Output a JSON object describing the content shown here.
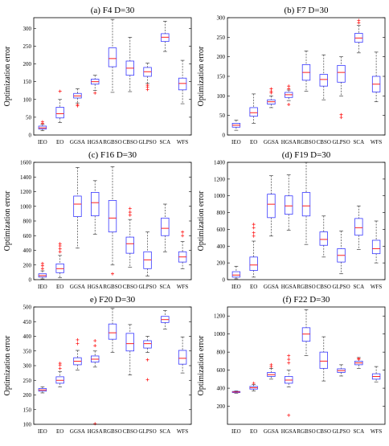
{
  "colors": {
    "box": "#3a3aff",
    "median": "#ff2020",
    "whisker": "#404040",
    "outlier": "#ff2020"
  },
  "chart_data": [
    {
      "type": "box",
      "title": "(a)  F4 D=30",
      "ylabel": "Optimization error",
      "categories": [
        "IEO",
        "EO",
        "GGSA",
        "HGSA",
        "RGBSO",
        "CBSO",
        "GLPSO",
        "SCA",
        "WFS"
      ],
      "ylim": [
        0,
        330
      ],
      "yticks": [
        0,
        50,
        100,
        150,
        200,
        250,
        300
      ],
      "boxes": [
        {
          "min": 12,
          "q1": 17,
          "median": 20,
          "q3": 25,
          "max": 30,
          "outliers": [
            33,
            37
          ]
        },
        {
          "min": 35,
          "q1": 48,
          "median": 60,
          "q3": 78,
          "max": 100,
          "outliers": [
            123
          ]
        },
        {
          "min": 90,
          "q1": 104,
          "median": 110,
          "q3": 117,
          "max": 130,
          "outliers": [
            82,
            85
          ]
        },
        {
          "min": 125,
          "q1": 143,
          "median": 150,
          "q3": 157,
          "max": 168,
          "outliers": [
            118
          ]
        },
        {
          "min": 120,
          "q1": 192,
          "median": 215,
          "q3": 245,
          "max": 325,
          "outliers": []
        },
        {
          "min": 122,
          "q1": 168,
          "median": 188,
          "q3": 208,
          "max": 275,
          "outliers": []
        },
        {
          "min": 145,
          "q1": 165,
          "median": 178,
          "q3": 190,
          "max": 202,
          "outliers": [
            128,
            135,
            140
          ]
        },
        {
          "min": 235,
          "q1": 263,
          "median": 275,
          "q3": 285,
          "max": 320,
          "outliers": []
        },
        {
          "min": 88,
          "q1": 127,
          "median": 145,
          "q3": 160,
          "max": 210,
          "outliers": []
        }
      ]
    },
    {
      "type": "box",
      "title": "(b)  F7 D=30",
      "ylabel": "Optimization error",
      "categories": [
        "IEO",
        "EO",
        "GGSA",
        "HGSA",
        "RGBSO",
        "CBSO",
        "GLPSO",
        "SCA",
        "WFS"
      ],
      "ylim": [
        0,
        300
      ],
      "yticks": [
        0,
        50,
        100,
        150,
        200,
        250,
        300
      ],
      "boxes": [
        {
          "min": 12,
          "q1": 20,
          "median": 25,
          "q3": 30,
          "max": 38,
          "outliers": []
        },
        {
          "min": 30,
          "q1": 48,
          "median": 57,
          "q3": 70,
          "max": 105,
          "outliers": []
        },
        {
          "min": 70,
          "q1": 79,
          "median": 85,
          "q3": 90,
          "max": 100,
          "outliers": [
            108,
            112,
            118
          ]
        },
        {
          "min": 88,
          "q1": 96,
          "median": 103,
          "q3": 109,
          "max": 115,
          "outliers": [
            78,
            118,
            125
          ]
        },
        {
          "min": 112,
          "q1": 140,
          "median": 160,
          "q3": 180,
          "max": 215,
          "outliers": []
        },
        {
          "min": 90,
          "q1": 125,
          "median": 142,
          "q3": 155,
          "max": 205,
          "outliers": []
        },
        {
          "min": 100,
          "q1": 135,
          "median": 160,
          "q3": 178,
          "max": 200,
          "outliers": [
            45,
            52
          ]
        },
        {
          "min": 210,
          "q1": 237,
          "median": 248,
          "q3": 260,
          "max": 280,
          "outliers": [
            287,
            293
          ]
        },
        {
          "min": 85,
          "q1": 110,
          "median": 130,
          "q3": 150,
          "max": 212,
          "outliers": []
        }
      ]
    },
    {
      "type": "box",
      "title": "(c)  F16 D=30",
      "ylabel": "Optimization error",
      "categories": [
        "IEO",
        "EO",
        "GGSA",
        "HGSA",
        "RGBSO",
        "CBSO",
        "GLPSO",
        "SCA",
        "WFS"
      ],
      "ylim": [
        0,
        1600
      ],
      "yticks": [
        0,
        200,
        400,
        600,
        800,
        1000,
        1200,
        1400,
        1600
      ],
      "boxes": [
        {
          "min": 10,
          "q1": 35,
          "median": 55,
          "q3": 80,
          "max": 120,
          "outliers": [
            150,
            190,
            220
          ]
        },
        {
          "min": 25,
          "q1": 95,
          "median": 150,
          "q3": 215,
          "max": 330,
          "outliers": [
            380,
            420,
            460,
            490
          ]
        },
        {
          "min": 430,
          "q1": 860,
          "median": 1030,
          "q3": 1140,
          "max": 1530,
          "outliers": []
        },
        {
          "min": 620,
          "q1": 870,
          "median": 1050,
          "q3": 1190,
          "max": 1350,
          "outliers": []
        },
        {
          "min": 200,
          "q1": 650,
          "median": 840,
          "q3": 1080,
          "max": 1540,
          "outliers": [
            80
          ]
        },
        {
          "min": 170,
          "q1": 360,
          "median": 490,
          "q3": 580,
          "max": 820,
          "outliers": [
            880,
            920,
            970
          ]
        },
        {
          "min": 50,
          "q1": 150,
          "median": 270,
          "q3": 380,
          "max": 650,
          "outliers": []
        },
        {
          "min": 380,
          "q1": 600,
          "median": 700,
          "q3": 840,
          "max": 1030,
          "outliers": []
        },
        {
          "min": 150,
          "q1": 240,
          "median": 310,
          "q3": 380,
          "max": 520,
          "outliers": [
            600,
            650
          ]
        }
      ]
    },
    {
      "type": "box",
      "title": "(d)  F19 D=30",
      "ylabel": "Optimization error",
      "categories": [
        "IEO",
        "EO",
        "GGSA",
        "HGSA",
        "RGBSO",
        "CBSO",
        "GLPSO",
        "SCA",
        "WFS"
      ],
      "ylim": [
        0,
        1400
      ],
      "yticks": [
        0,
        200,
        400,
        600,
        800,
        1000,
        1200,
        1400
      ],
      "boxes": [
        {
          "min": 10,
          "q1": 30,
          "median": 55,
          "q3": 95,
          "max": 160,
          "outliers": []
        },
        {
          "min": 30,
          "q1": 110,
          "median": 175,
          "q3": 270,
          "max": 460,
          "outliers": [
            520,
            560,
            620,
            660
          ]
        },
        {
          "min": 520,
          "q1": 740,
          "median": 900,
          "q3": 1020,
          "max": 1240,
          "outliers": []
        },
        {
          "min": 590,
          "q1": 780,
          "median": 880,
          "q3": 1000,
          "max": 1250,
          "outliers": []
        },
        {
          "min": 420,
          "q1": 760,
          "median": 880,
          "q3": 1040,
          "max": 1400,
          "outliers": []
        },
        {
          "min": 270,
          "q1": 410,
          "median": 480,
          "q3": 570,
          "max": 760,
          "outliers": []
        },
        {
          "min": 70,
          "q1": 210,
          "median": 290,
          "q3": 370,
          "max": 580,
          "outliers": []
        },
        {
          "min": 360,
          "q1": 530,
          "median": 620,
          "q3": 730,
          "max": 880,
          "outliers": []
        },
        {
          "min": 200,
          "q1": 310,
          "median": 370,
          "q3": 470,
          "max": 700,
          "outliers": []
        }
      ]
    },
    {
      "type": "box",
      "title": "e)  F20 D=30",
      "ylabel": "Optimization error",
      "categories": [
        "IEO",
        "EO",
        "GGSA",
        "HGSA",
        "RGBSO",
        "CBSO",
        "GLPSO",
        "SCA",
        "WFS"
      ],
      "ylim": [
        100,
        500
      ],
      "yticks": [
        100,
        150,
        200,
        250,
        300,
        350,
        400,
        450,
        500
      ],
      "boxes": [
        {
          "min": 207,
          "q1": 213,
          "median": 217,
          "q3": 222,
          "max": 228,
          "outliers": []
        },
        {
          "min": 228,
          "q1": 240,
          "median": 250,
          "q3": 262,
          "max": 280,
          "outliers": [
            290,
            302,
            308
          ]
        },
        {
          "min": 285,
          "q1": 303,
          "median": 315,
          "q3": 327,
          "max": 352,
          "outliers": [
            375,
            388
          ]
        },
        {
          "min": 295,
          "q1": 312,
          "median": 322,
          "q3": 333,
          "max": 350,
          "outliers": [
            368,
            385,
            102
          ]
        },
        {
          "min": 345,
          "q1": 390,
          "median": 412,
          "q3": 442,
          "max": 495,
          "outliers": []
        },
        {
          "min": 268,
          "q1": 350,
          "median": 375,
          "q3": 410,
          "max": 440,
          "outliers": []
        },
        {
          "min": 345,
          "q1": 360,
          "median": 375,
          "q3": 385,
          "max": 400,
          "outliers": [
            320,
            252
          ]
        },
        {
          "min": 425,
          "q1": 447,
          "median": 457,
          "q3": 468,
          "max": 488,
          "outliers": []
        },
        {
          "min": 275,
          "q1": 305,
          "median": 325,
          "q3": 352,
          "max": 398,
          "outliers": []
        }
      ]
    },
    {
      "type": "box",
      "title": "(f)  F22 D=30",
      "ylabel": "Optimization error",
      "categories": [
        "IEO",
        "EO",
        "GGSA",
        "HGSA",
        "RGBSO",
        "CBSO",
        "GLPSO",
        "SCA",
        "WFS"
      ],
      "ylim": [
        0,
        1300
      ],
      "yticks": [
        200,
        400,
        600,
        800,
        1000,
        1200
      ],
      "boxes": [
        {
          "min": 345,
          "q1": 352,
          "median": 358,
          "q3": 364,
          "max": 370,
          "outliers": []
        },
        {
          "min": 370,
          "q1": 390,
          "median": 405,
          "q3": 420,
          "max": 440,
          "outliers": [
            455
          ]
        },
        {
          "min": 500,
          "q1": 530,
          "median": 550,
          "q3": 575,
          "max": 620,
          "outliers": [
            640,
            660
          ]
        },
        {
          "min": 415,
          "q1": 455,
          "median": 490,
          "q3": 530,
          "max": 600,
          "outliers": [
            680,
            720,
            760,
            100
          ]
        },
        {
          "min": 760,
          "q1": 920,
          "median": 1000,
          "q3": 1070,
          "max": 1270,
          "outliers": []
        },
        {
          "min": 480,
          "q1": 620,
          "median": 700,
          "q3": 800,
          "max": 970,
          "outliers": []
        },
        {
          "min": 535,
          "q1": 575,
          "median": 595,
          "q3": 615,
          "max": 660,
          "outliers": []
        },
        {
          "min": 620,
          "q1": 660,
          "median": 680,
          "q3": 700,
          "max": 740,
          "outliers": [
            722,
            728
          ]
        },
        {
          "min": 470,
          "q1": 500,
          "median": 530,
          "q3": 560,
          "max": 640,
          "outliers": []
        }
      ]
    }
  ]
}
